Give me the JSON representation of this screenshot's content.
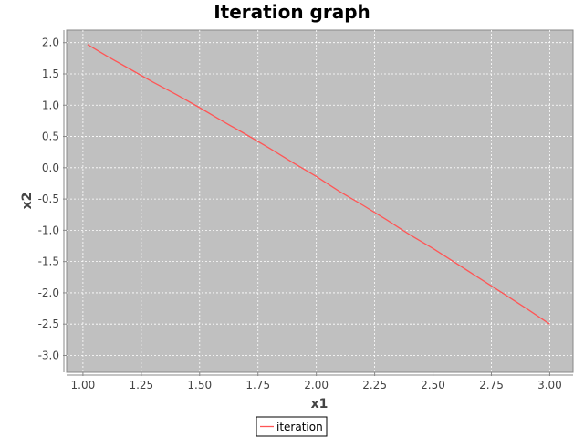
{
  "chart_data": {
    "type": "line",
    "title": "Iteration graph",
    "xlabel": "x1",
    "ylabel": "x2",
    "xlim": [
      0.93,
      3.1
    ],
    "ylim": [
      -3.27,
      2.2
    ],
    "xticks": [
      "1.00",
      "1.25",
      "1.50",
      "1.75",
      "2.00",
      "2.25",
      "2.50",
      "2.75",
      "3.00"
    ],
    "yticks": [
      "2.0",
      "1.5",
      "1.0",
      "0.5",
      "0.0",
      "-0.5",
      "-1.0",
      "-1.5",
      "-2.0",
      "-2.5",
      "-3.0"
    ],
    "grid": true,
    "legend_position": "bottom-center",
    "series": [
      {
        "name": "iteration",
        "color": "#ff5555",
        "x": [
          1.02,
          1.1,
          1.2,
          1.3,
          1.4,
          1.5,
          1.6,
          1.7,
          1.8,
          1.9,
          2.0,
          2.1,
          2.2,
          2.3,
          2.4,
          2.5,
          2.6,
          2.7,
          2.8,
          2.9,
          3.0
        ],
        "y": [
          1.97,
          1.79,
          1.58,
          1.37,
          1.17,
          0.96,
          0.74,
          0.53,
          0.31,
          0.08,
          -0.14,
          -0.38,
          -0.6,
          -0.83,
          -1.07,
          -1.29,
          -1.53,
          -1.77,
          -2.01,
          -2.25,
          -2.5
        ]
      }
    ]
  }
}
